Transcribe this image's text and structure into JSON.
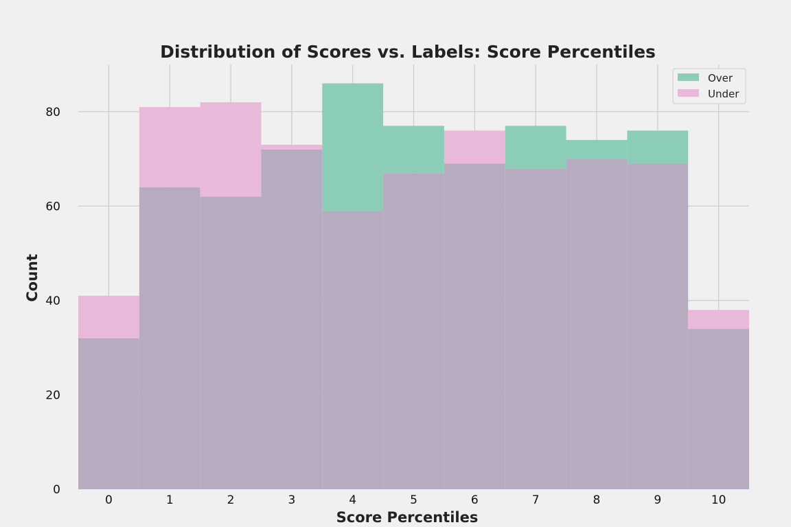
{
  "chart_data": {
    "type": "bar",
    "title": "Distribution of Scores vs. Labels: Score Percentiles",
    "xlabel": "Score Percentiles",
    "ylabel": "Count",
    "categories": [
      "0",
      "1",
      "2",
      "3",
      "4",
      "5",
      "6",
      "7",
      "8",
      "9",
      "10"
    ],
    "ylim": [
      0,
      90
    ],
    "yticks": [
      "0",
      "20",
      "40",
      "60",
      "80"
    ],
    "grid": true,
    "legend_position": "top-right",
    "series": [
      {
        "name": "Over",
        "color": "#8bcdb7",
        "values": [
          32,
          64,
          62,
          72,
          86,
          77,
          69,
          77,
          74,
          76,
          34
        ]
      },
      {
        "name": "Under",
        "color": "#e9b9d9",
        "values": [
          41,
          81,
          82,
          73,
          59,
          67,
          76,
          68,
          70,
          69,
          38
        ]
      }
    ],
    "overlap_color": "#b7abbf"
  }
}
